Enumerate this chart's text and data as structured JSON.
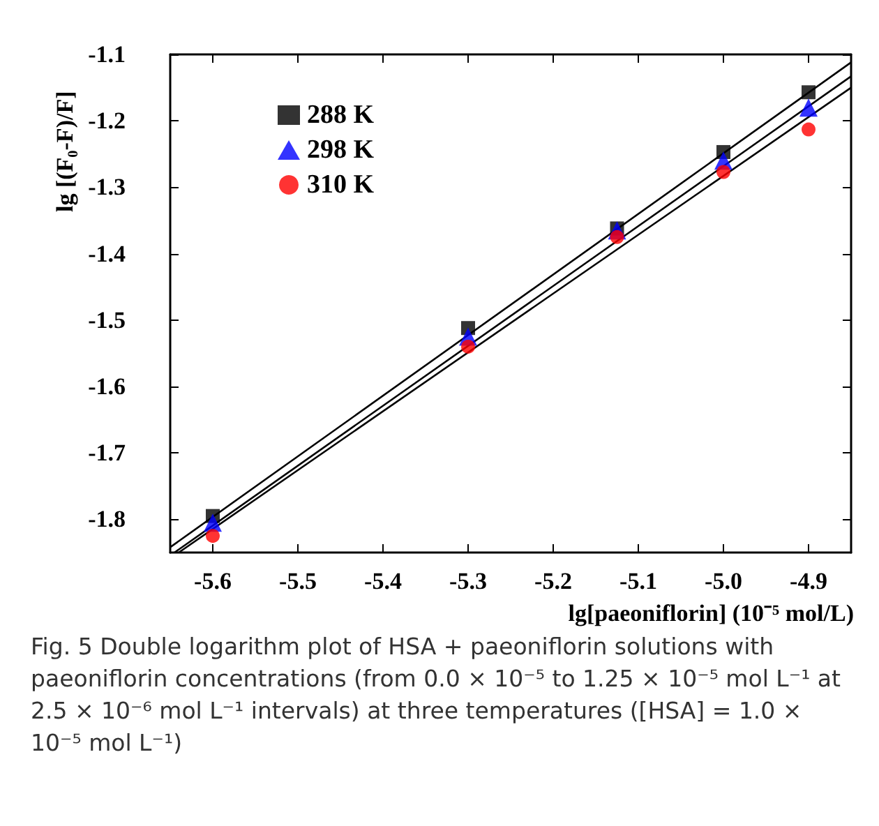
{
  "chart_data": {
    "type": "scatter",
    "xlabel": "lg[paeoniflorin] (10⁻⁵ mol/L)",
    "ylabel": "lg [(F₀-F)/F]",
    "annotations": [
      "Fig. 5 Double logarithm plot of HSA + paeoniflorin solutions with paeoniflorin concentrations (from 0.0 × 10⁻⁵ to 1.25 × 10⁻⁵ mol L⁻¹ at 2.5 × 10⁻⁶ mol L⁻¹ intervals) at three temperatures ([HSA] = 1.0 × 10⁻⁵ mol L⁻¹)"
    ],
    "x": [
      -5.6,
      -5.3,
      -5.125,
      -5.0,
      -4.9
    ],
    "series": [
      {
        "name": "288 K",
        "color": "#000000",
        "marker": "square",
        "values": [
          -1.795,
          -1.512,
          -1.362,
          -1.247,
          -1.157
        ]
      },
      {
        "name": "298 K",
        "color": "#0000ff",
        "marker": "triangle",
        "values": [
          -1.805,
          -1.525,
          -1.365,
          -1.26,
          -1.18
        ]
      },
      {
        "name": "310 K",
        "color": "#ff0000",
        "marker": "circle",
        "values": [
          -1.825,
          -1.54,
          -1.375,
          -1.277,
          -1.213
        ]
      },
      {
        "type": "line",
        "color": "#000000",
        "marker": "none",
        "line_style": "solid",
        "x": [
          -5.65,
          -4.85
        ],
        "values": [
          -1.842,
          -1.112
        ]
      },
      {
        "type": "line",
        "color": "#000000",
        "marker": "none",
        "line_style": "solid",
        "x": [
          -5.645,
          -4.85
        ],
        "values": [
          -1.85,
          -1.133
        ]
      },
      {
        "type": "line",
        "color": "#000000",
        "marker": "none",
        "line_style": "solid",
        "x": [
          -5.64,
          -4.85
        ],
        "values": [
          -1.85,
          -1.15
        ]
      }
    ],
    "xlim": [
      -5.65,
      -4.85
    ],
    "xticks": [
      -5.6,
      -5.5,
      -5.4,
      -5.3,
      -5.2,
      -5.1,
      {
        "value": -5.0,
        "label": "-5.0"
      },
      -4.9
    ],
    "ylim": [
      -1.85,
      -1.1
    ],
    "yticks": [
      -1.8,
      -1.7,
      -1.6,
      -1.5,
      -1.4,
      -1.3,
      -1.2,
      -1.1
    ],
    "legend": "top left"
  }
}
